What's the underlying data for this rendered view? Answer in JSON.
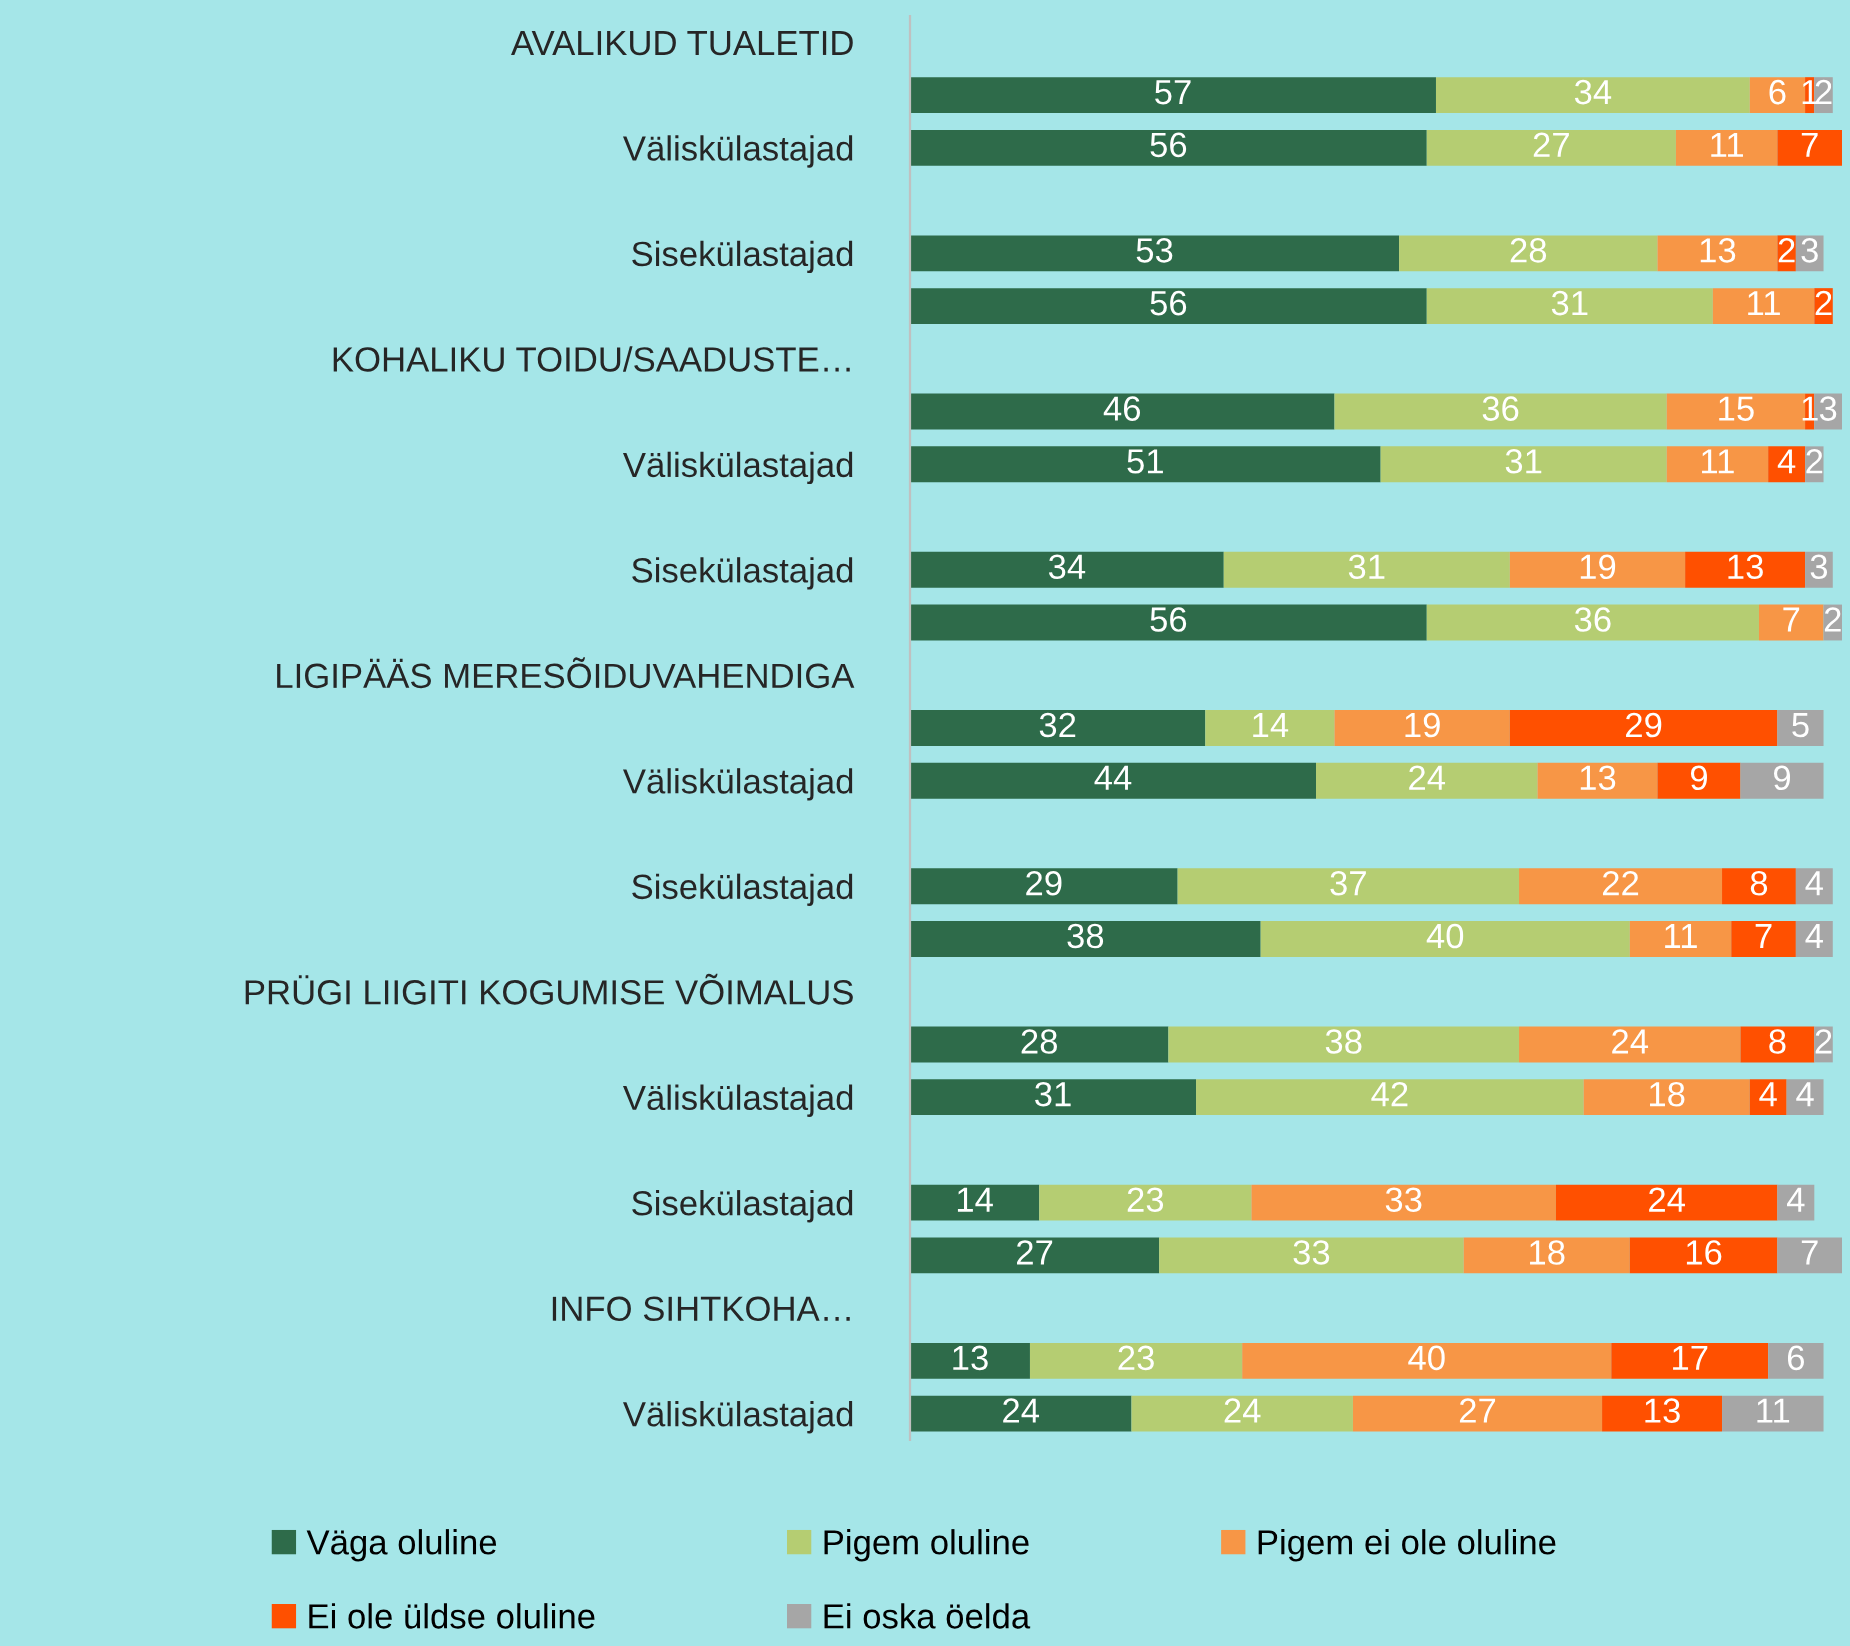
{
  "chart_data": {
    "type": "bar",
    "orientation": "horizontal",
    "stacked": true,
    "tick_labels": "y",
    "data_labels": true,
    "legend": "bottom",
    "grid": false,
    "categories": [
      "AVALIKUD TUALETID",
      null,
      "Väliskülastajad",
      null,
      "Sisekülastajad",
      null,
      "KOHALIKU TOIDU/SAADUSTE…",
      null,
      "Väliskülastajad",
      null,
      "Sisekülastajad",
      null,
      "LIGIPÄÄS MERESÕIDUVAHENDIGA",
      null,
      "Väliskülastajad",
      null,
      "Sisekülastajad",
      null,
      "PRÜGI LIIGITI KOGUMISE VÕIMALUS",
      null,
      "Väliskülastajad",
      null,
      "Sisekülastajad",
      null,
      "INFO SIHTKOHA…",
      null,
      "Väliskülastajad"
    ],
    "series": [
      {
        "name": "Väga oluline",
        "color": "#2e6b4a",
        "values": [
          null,
          57,
          56,
          null,
          53,
          56,
          null,
          46,
          51,
          null,
          34,
          56,
          null,
          32,
          44,
          null,
          29,
          38,
          null,
          28,
          31,
          null,
          14,
          27,
          null,
          13,
          24
        ]
      },
      {
        "name": "Pigem oluline",
        "color": "#b5cd72",
        "values": [
          null,
          34,
          27,
          null,
          28,
          31,
          null,
          36,
          31,
          null,
          31,
          36,
          null,
          14,
          24,
          null,
          37,
          40,
          null,
          38,
          42,
          null,
          23,
          33,
          null,
          23,
          24
        ]
      },
      {
        "name": "Pigem ei ole oluline",
        "color": "#f79646",
        "values": [
          null,
          6,
          11,
          null,
          13,
          11,
          null,
          15,
          11,
          null,
          19,
          7,
          null,
          19,
          13,
          null,
          22,
          11,
          null,
          24,
          18,
          null,
          33,
          18,
          null,
          40,
          27
        ]
      },
      {
        "name": "Ei ole üldse oluline",
        "color": "#ff5000",
        "values": [
          null,
          1,
          7,
          null,
          2,
          2,
          null,
          1,
          4,
          null,
          13,
          null,
          null,
          29,
          9,
          null,
          8,
          7,
          null,
          8,
          4,
          null,
          24,
          16,
          null,
          17,
          13
        ]
      },
      {
        "name": "Ei oska öelda",
        "color": "#a6a6a6",
        "values": [
          null,
          2,
          null,
          null,
          3,
          null,
          null,
          3,
          2,
          null,
          3,
          2,
          null,
          5,
          9,
          null,
          4,
          4,
          null,
          2,
          4,
          null,
          4,
          7,
          null,
          6,
          11
        ]
      }
    ]
  }
}
